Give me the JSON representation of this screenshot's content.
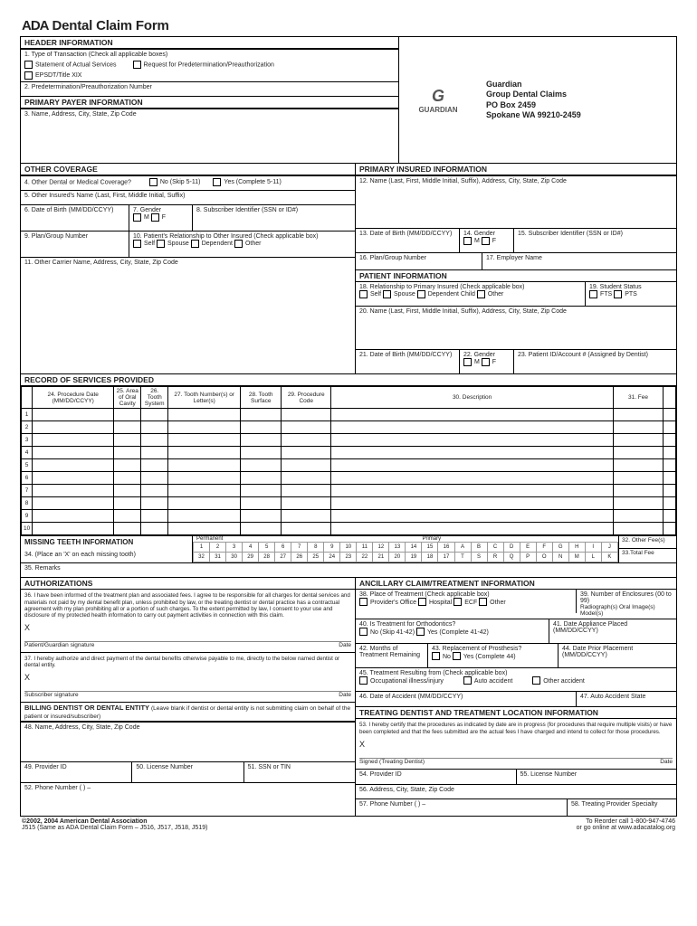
{
  "title_prefix": "ADA",
  "title": "Dental Claim Form",
  "company": {
    "name": "Guardian",
    "line1": "Group Dental Claims",
    "line2": "PO Box 2459",
    "line3": "Spokane WA 99210-2459",
    "logo_text": "GUARDIAN"
  },
  "hdr": {
    "header_info": "HEADER INFORMATION",
    "f1": "1. Type of Transaction (Check all applicable boxes)",
    "f1a": "Statement of Actual Services",
    "f1b": "Request for Predetermination/Preauthorization",
    "f1c": "EPSDT/Title XIX",
    "f2": "2. Predetermination/Preauthorization Number",
    "primary_payer": "PRIMARY PAYER INFORMATION",
    "f3": "3. Name, Address, City, State, Zip Code",
    "other_cov": "OTHER COVERAGE",
    "f4": "4. Other Dental or Medical Coverage?",
    "f4no": "No  (Skip 5-11)",
    "f4yes": "Yes (Complete 5-11)",
    "f5": "5. Other Insured's Name (Last, First, Middle Initial, Suffix)",
    "f6": "6. Date of Birth (MM/DD/CCYY)",
    "f7": "7. Gender",
    "f7m": "M",
    "f7f": "F",
    "f8": "8. Subscriber Identifier (SSN or ID#)",
    "f9": "9. Plan/Group Number",
    "f10": "10. Patient's Relationship to Other Insured (Check applicable box)",
    "f10a": "Self",
    "f10b": "Spouse",
    "f10c": "Dependent",
    "f10d": "Other",
    "f11": "11. Other Carrier Name, Address, City, State, Zip Code",
    "primary_ins": "PRIMARY INSURED INFORMATION",
    "f12": "12. Name (Last, First, Middle Initial, Suffix), Address, City, State, Zip Code",
    "f13": "13. Date of Birth (MM/DD/CCYY)",
    "f14": "14. Gender",
    "f15": "15. Subscriber Identifier (SSN or ID#)",
    "f16": "16. Plan/Group Number",
    "f17": "17. Employer Name",
    "patient_info": "PATIENT INFORMATION",
    "f18": "18. Relationship to Primary Insured (Check applicable box)",
    "f18a": "Self",
    "f18b": "Spouse",
    "f18c": "Dependent Child",
    "f18d": "Other",
    "f19": "19. Student Status",
    "f19a": "FTS",
    "f19b": "PTS",
    "f20": "20. Name (Last, First, Middle Initial, Suffix), Address, City, State, Zip Code",
    "f21": "21. Date of Birth (MM/DD/CCYY)",
    "f22": "22. Gender",
    "f23": "23. Patient ID/Account # (Assigned by Dentist)"
  },
  "svc": {
    "title": "RECORD OF SERVICES PROVIDED",
    "c24": "24. Procedure Date (MM/DD/CCYY)",
    "c25": "25. Area of Oral Cavity",
    "c26": "26. Tooth System",
    "c27": "27. Tooth Number(s) or Letter(s)",
    "c28": "28. Tooth Surface",
    "c29": "29. Procedure Code",
    "c30": "30. Description",
    "c31": "31. Fee",
    "rows": [
      1,
      2,
      3,
      4,
      5,
      6,
      7,
      8,
      9,
      10
    ]
  },
  "teeth": {
    "title": "MISSING TEETH INFORMATION",
    "f34": "34. (Place an 'X' on each missing tooth)",
    "permanent": "Permanent",
    "primary": "Primary",
    "top": [
      "1",
      "2",
      "3",
      "4",
      "5",
      "6",
      "7",
      "8",
      "9",
      "10",
      "11",
      "12",
      "13",
      "14",
      "15",
      "16",
      "A",
      "B",
      "C",
      "D",
      "E",
      "F",
      "G",
      "H",
      "I",
      "J"
    ],
    "bot": [
      "32",
      "31",
      "30",
      "29",
      "28",
      "27",
      "26",
      "25",
      "24",
      "23",
      "22",
      "21",
      "20",
      "19",
      "18",
      "17",
      "T",
      "S",
      "R",
      "Q",
      "P",
      "O",
      "N",
      "M",
      "L",
      "K"
    ],
    "f32": "32. Other Fee(s)",
    "f33": "33.Total Fee",
    "f35": "35. Remarks"
  },
  "auth": {
    "title": "AUTHORIZATIONS",
    "f36": "36. I have been informed of the treatment plan and associated fees. I agree to be responsible for all charges for dental services and materials not paid by my dental benefit plan, unless prohibited by law, or the treating dentist or dental practice has a contractual agreement with my plan prohibiting all or a portion of such charges. To the extent permitted by law, I consent to your use and disclosure of my protected health information to carry out payment activities in connection with this claim.",
    "sig1a": "Patient/Guardian signature",
    "date": "Date",
    "f37": "37. I hereby authorize and direct payment of the dental benefits otherwise payable to me, directly to the below named dentist or dental entity.",
    "sig2a": "Subscriber signature",
    "billing": "BILLING DENTIST OR DENTAL ENTITY",
    "billing_sub": "(Leave blank if dentist or dental entity is not submitting claim on behalf of the patient or insured/subscriber)",
    "f48": "48. Name, Address, City, State, Zip Code",
    "f49": "49. Provider ID",
    "f50": "50. License Number",
    "f51": "51. SSN or TIN",
    "f52": "52. Phone Number   (          )          –"
  },
  "anc": {
    "title": "ANCILLARY CLAIM/TREATMENT INFORMATION",
    "f38": "38. Place of Treatment (Check applicable box)",
    "f38a": "Provider's Office",
    "f38b": "Hospital",
    "f38c": "ECF",
    "f38d": "Other",
    "f39": "39. Number of Enclosures (00 to 99)",
    "f39sub": "Radiograph(s)   Oral Image(s)   Model(s)",
    "f40": "40. Is Treatment for Orthodontics?",
    "f40no": "No  (Skip 41-42)",
    "f40yes": "Yes  (Complete 41-42)",
    "f41": "41. Date Appliance Placed (MM/DD/CCYY)",
    "f42": "42. Months of Treatment Remaining",
    "f43": "43. Replacement of Prosthesis?",
    "f43no": "No",
    "f43yes": "Yes (Complete 44)",
    "f44": "44. Date Prior Placement (MM/DD/CCYY)",
    "f45": "45. Treatment Resulting from (Check applicable box)",
    "f45a": "Occupational illness/injury",
    "f45b": "Auto accident",
    "f45c": "Other accident",
    "f46": "46. Date of Accident (MM/DD/CCYY)",
    "f47": "47. Auto Accident State",
    "treat_title": "TREATING DENTIST AND TREATMENT LOCATION INFORMATION",
    "f53": "53. I hereby certify that the procedures as indicated by date are in progress (for procedures that require multiple visits) or have been completed and that the fees submitted are the actual fees I have charged and intend to collect for those procedures.",
    "sig3": "Signed (Treating Dentist)",
    "f54": "54. Provider ID",
    "f55": "55. License Number",
    "f56": "56. Address, City, State, Zip Code",
    "f57": "57. Phone Number  (          )          –",
    "f58": "58. Treating Provider Specialty"
  },
  "foot": {
    "copy": "©2002, 2004 American Dental Association",
    "sub": "J515 (Same as ADA Dental Claim Form – J516, J517, J518, J519)",
    "reorder": "To Reorder call 1-800-947-4746",
    "web": "or go online at www.adacatalog.org"
  }
}
